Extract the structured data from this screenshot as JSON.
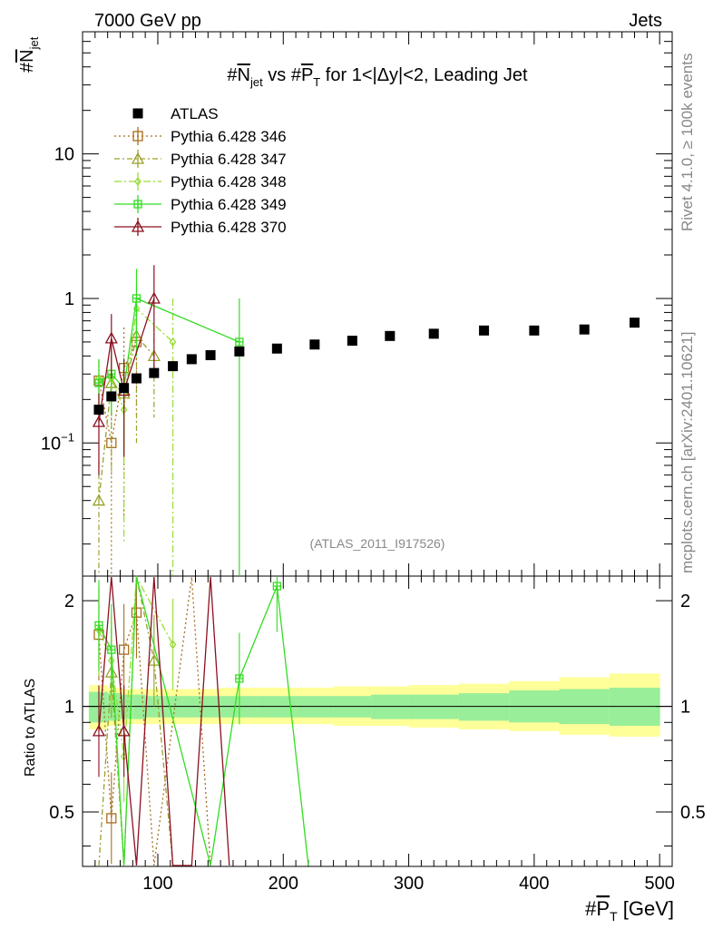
{
  "header": {
    "energy_label": "7000 GeV pp",
    "category_label": "Jets",
    "rivet_label": "Rivet 4.1.0, ≥ 100k events",
    "source_label": "mcplots.cern.ch [arXiv:2401.10621]",
    "analysis_label": "(ATLAS_2011_I917526)"
  },
  "chart_data": {
    "type": "scatter",
    "title": "#N̄jet vs #P̄T for 1<|Δy|<2, Leading Jet",
    "title_parts": {
      "a": "#",
      "b": "N",
      "c": "jet",
      "d": " vs #",
      "e": "P",
      "f": "T",
      "g": " for 1<|Δy|<2, Leading Jet"
    },
    "ylabel_main": {
      "a": "#",
      "b": "N",
      "c": "jet"
    },
    "ylabel_ratio": "Ratio to ATLAS",
    "xlabel": {
      "a": "#",
      "b": "P",
      "c": "T",
      "d": " [GeV]"
    },
    "xlim": [
      40,
      510
    ],
    "ylim_main": [
      0.012,
      70
    ],
    "ylim_ratio": [
      0.35,
      2.35
    ],
    "x_ticks": [
      "100",
      "200",
      "300",
      "400",
      "500"
    ],
    "y_ticks_main": [
      "10",
      "1"
    ],
    "y_tick_exp": {
      "base": "10",
      "exp": "−1"
    },
    "y_ticks_ratio": [
      "2",
      "1",
      "0.5"
    ],
    "legend": [
      "ATLAS",
      "Pythia 6.428 346",
      "Pythia 6.428 347",
      "Pythia 6.428 348",
      "Pythia 6.428 349",
      "Pythia 6.428 370"
    ],
    "data": {
      "name": "ATLAS",
      "color": "#000000",
      "x": [
        53,
        63,
        73,
        83,
        97,
        112,
        127,
        142,
        165,
        195,
        225,
        255,
        285,
        320,
        360,
        400,
        440,
        480
      ],
      "y": [
        0.17,
        0.21,
        0.24,
        0.28,
        0.305,
        0.34,
        0.38,
        0.405,
        0.43,
        0.45,
        0.48,
        0.51,
        0.55,
        0.57,
        0.6,
        0.6,
        0.61,
        0.68
      ]
    },
    "bands_ratio": {
      "x_edges": [
        45,
        60,
        70,
        80,
        90,
        105,
        120,
        135,
        150,
        180,
        210,
        240,
        270,
        300,
        340,
        380,
        420,
        460,
        500
      ],
      "inner_lo": [
        0.9,
        0.91,
        0.92,
        0.92,
        0.93,
        0.93,
        0.93,
        0.93,
        0.93,
        0.93,
        0.93,
        0.93,
        0.92,
        0.92,
        0.91,
        0.9,
        0.89,
        0.88
      ],
      "inner_hi": [
        1.1,
        1.09,
        1.08,
        1.08,
        1.07,
        1.07,
        1.07,
        1.07,
        1.07,
        1.07,
        1.07,
        1.07,
        1.08,
        1.08,
        1.09,
        1.11,
        1.12,
        1.13
      ],
      "outer_lo": [
        0.86,
        0.88,
        0.89,
        0.89,
        0.89,
        0.89,
        0.89,
        0.89,
        0.89,
        0.89,
        0.89,
        0.88,
        0.88,
        0.87,
        0.86,
        0.85,
        0.83,
        0.82
      ],
      "outer_hi": [
        1.15,
        1.13,
        1.12,
        1.12,
        1.12,
        1.12,
        1.12,
        1.12,
        1.13,
        1.13,
        1.13,
        1.14,
        1.14,
        1.15,
        1.16,
        1.18,
        1.21,
        1.24
      ],
      "inner_color": "#99ee99",
      "outer_color": "#ffff99"
    },
    "series": [
      {
        "name": "Pythia 6.428 346",
        "color": "#a66e21",
        "marker": "square",
        "dash": "2,3",
        "x": [
          53,
          63,
          73,
          83
        ],
        "y": [
          0.27,
          0.1,
          0.33,
          0.5
        ],
        "err": [
          0.1,
          0.1,
          0.3,
          0.35
        ],
        "ratio_x": [
          53,
          63,
          73,
          83,
          97,
          127,
          142
        ],
        "ratio_y": [
          1.6,
          0.48,
          1.45,
          1.85,
          0.3,
          2.4,
          0.3
        ]
      },
      {
        "name": "Pythia 6.428 347",
        "color": "#9aa02a",
        "marker": "triangle",
        "dash": "6,3,2,3",
        "x": [
          53,
          63,
          73,
          83,
          97
        ],
        "y": [
          0.04,
          0.26,
          0.22,
          0.55,
          0.4
        ],
        "err": [
          0.035,
          0.2,
          0.15,
          0.45,
          0.25
        ],
        "ratio_x": [
          53,
          63,
          73,
          83,
          97,
          112
        ],
        "ratio_y": [
          0.3,
          1.25,
          0.3,
          2.4,
          1.35,
          0.3
        ]
      },
      {
        "name": "Pythia 6.428 348",
        "color": "#99dd33",
        "marker": "diamond",
        "dash": "8,3,2,3",
        "x": [
          53,
          63,
          73,
          83,
          112
        ],
        "y": [
          0.28,
          0.28,
          0.17,
          0.85,
          0.5
        ],
        "err": [
          0.1,
          0.12,
          0.15,
          0.4,
          0.5
        ],
        "ratio_x": [
          53,
          63,
          73,
          83,
          112
        ],
        "ratio_y": [
          1.65,
          1.35,
          0.72,
          2.4,
          1.5
        ]
      },
      {
        "name": "Pythia 6.428 349",
        "color": "#33dd22",
        "marker": "cross",
        "dash": "",
        "x": [
          53,
          63,
          73,
          83,
          165
        ],
        "y": [
          0.26,
          0.3,
          0.24,
          1.0,
          0.5
        ],
        "err": [
          0.12,
          0.14,
          0.15,
          0.6,
          0.5
        ],
        "ratio_x": [
          53,
          63,
          73,
          83,
          142,
          165,
          195,
          220
        ],
        "ratio_y": [
          1.7,
          1.45,
          0.3,
          2.4,
          0.3,
          1.2,
          2.2,
          0.3
        ]
      },
      {
        "name": "Pythia 6.428 370",
        "color": "#8b1020",
        "marker": "triangle",
        "dash": "",
        "x": [
          53,
          63,
          73,
          97
        ],
        "y": [
          0.14,
          0.53,
          0.23,
          1.0
        ],
        "err": [
          0.08,
          0.25,
          0.15,
          0.7
        ],
        "ratio_x": [
          53,
          63,
          73,
          83,
          97,
          112,
          127,
          142,
          157
        ],
        "ratio_y": [
          0.85,
          2.4,
          0.85,
          0.3,
          2.4,
          0.3,
          0.3,
          2.4,
          0.3
        ]
      }
    ]
  }
}
